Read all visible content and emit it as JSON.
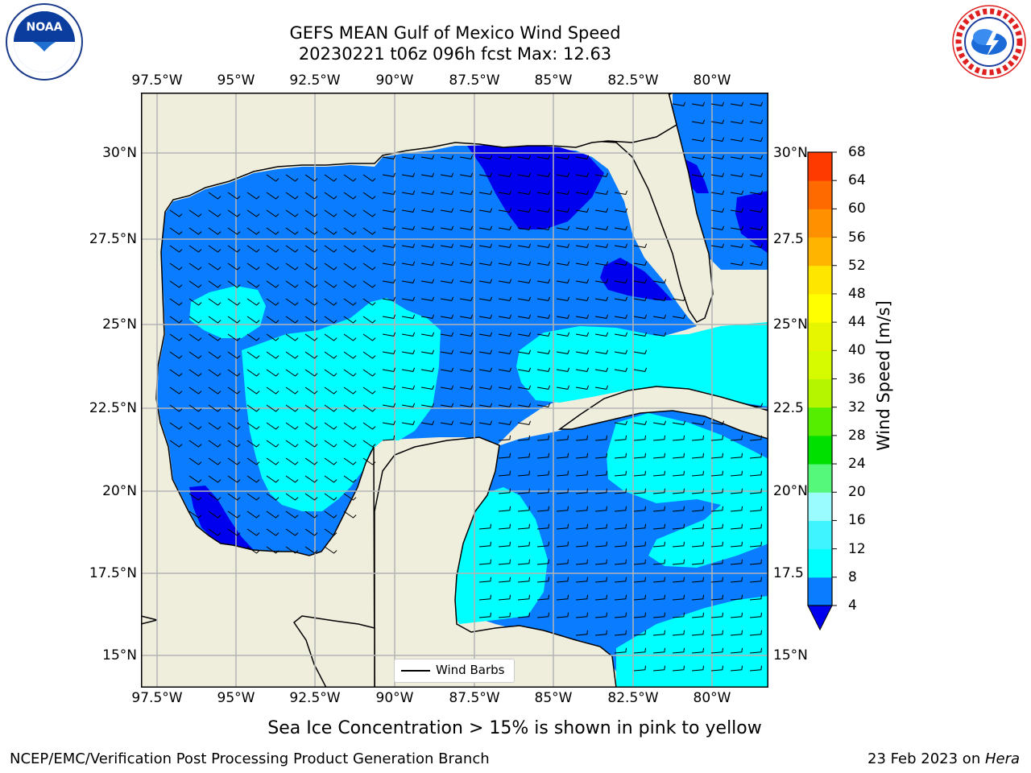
{
  "title": {
    "line1": "GEFS MEAN Gulf of Mexico Wind Speed",
    "line2": "20230221 t06z 096h fcst   Max: 12.63"
  },
  "axes": {
    "lon_labels": [
      "97.5°W",
      "95°W",
      "92.5°W",
      "90°W",
      "87.5°W",
      "85°W",
      "82.5°W",
      "80°W"
    ],
    "lat_labels_left": [
      "30°N",
      "27.5°N",
      "25°N",
      "22.5°N",
      "20°N",
      "17.5°N",
      "15°N"
    ],
    "lat_labels_right": [
      "30°N",
      "27.5",
      "25°N",
      "22.5",
      "20°N",
      "17.5",
      "15°N"
    ]
  },
  "legend": {
    "wind_barbs": "Wind Barbs"
  },
  "colorbar": {
    "title": "Wind Speed [m/s]",
    "levels": [
      "4",
      "8",
      "12",
      "16",
      "20",
      "24",
      "28",
      "32",
      "36",
      "40",
      "44",
      "48",
      "52",
      "56",
      "60",
      "64",
      "68"
    ],
    "colors": [
      "#0a7cff",
      "#00ffff",
      "#40f4ff",
      "#9afcff",
      "#55f87a",
      "#00e000",
      "#55ee00",
      "#b5f500",
      "#d6fa00",
      "#e6f500",
      "#ffff00",
      "#ffe600",
      "#ffb400",
      "#ff9000",
      "#ff6a00",
      "#ff3a00",
      "#ff0000"
    ],
    "extend_color": "#0000ee"
  },
  "map_colors": {
    "land": "#efeddc",
    "band_4_8": "#0a7cff",
    "band_8_12": "#00ffff",
    "below_4": "#0000ee",
    "grid": "#b4b4b4"
  },
  "caption": "Sea Ice Concentration > 15% is shown in pink to yellow",
  "footer": {
    "left": "NCEP/EMC/Verification Post Processing Product Generation Branch",
    "right_date": "23 Feb 2023",
    "right_on": " on ",
    "right_host": "Hera"
  },
  "logos": {
    "noaa_text": "NOAA",
    "nws_text": "NATIONAL WEATHER SERVICE"
  }
}
